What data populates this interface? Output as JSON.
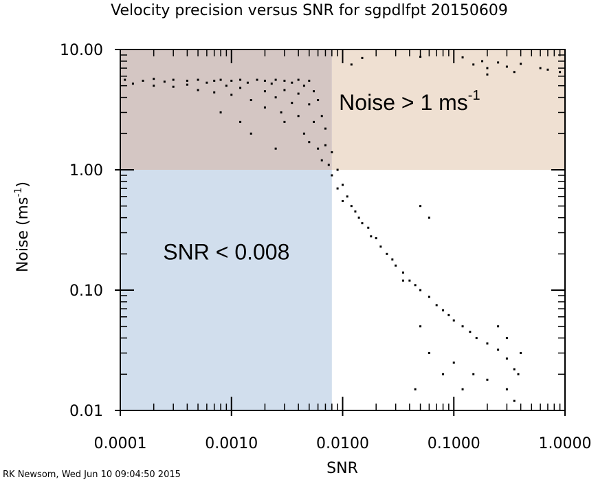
{
  "chart_data": {
    "type": "scatter",
    "title": "Velocity precision versus SNR for sgpdlfpt 20150609",
    "x_label": "SNR",
    "y_label": {
      "text": "Noise (ms",
      "sup": "-1",
      "tail": ")"
    },
    "footer": "RK Newsom, Wed Jun 10 09:04:50 2015",
    "xscale": "log",
    "yscale": "log",
    "xlim": [
      0.0001,
      1
    ],
    "ylim": [
      0.01,
      10
    ],
    "xticks": [
      {
        "value": 0.0001,
        "label": "0.0001"
      },
      {
        "value": 0.001,
        "label": "0.0010"
      },
      {
        "value": 0.01,
        "label": "0.0100"
      },
      {
        "value": 0.1,
        "label": "0.1000"
      },
      {
        "value": 1,
        "label": "1.0000"
      }
    ],
    "yticks": [
      {
        "value": 0.01,
        "label": "0.01"
      },
      {
        "value": 0.1,
        "label": "0.10"
      },
      {
        "value": 1,
        "label": "1.00"
      },
      {
        "value": 10,
        "label": "10.00"
      }
    ],
    "regions": [
      {
        "xlim": [
          0.008,
          1
        ],
        "ylim": [
          1,
          10
        ],
        "color": "#efe0d2"
      },
      {
        "xlim": [
          0.0001,
          0.008
        ],
        "ylim": [
          1,
          10
        ],
        "color": "#d4c6c3"
      },
      {
        "xlim": [
          0.0001,
          0.008
        ],
        "ylim": [
          0.01,
          1
        ],
        "color": "#d1deed"
      }
    ],
    "annotations": [
      {
        "text": "Noise > 1 ms",
        "sup": "-1",
        "x": 0.04,
        "y": 3.5
      },
      {
        "text": "SNR < 0.008",
        "x": 0.0009,
        "y": 0.2
      }
    ],
    "series": [
      {
        "color": "#000000",
        "x": [
          0.00011,
          0.00013,
          0.00016,
          0.0002,
          0.0002,
          0.00025,
          0.0003,
          0.0003,
          0.0004,
          0.0004,
          0.0005,
          0.0005,
          0.0006,
          0.0007,
          0.0007,
          0.0008,
          0.0009,
          0.001,
          0.001,
          0.0012,
          0.0012,
          0.0014,
          0.0015,
          0.0017,
          0.002,
          0.002,
          0.002,
          0.0023,
          0.0025,
          0.0025,
          0.0028,
          0.003,
          0.003,
          0.003,
          0.0035,
          0.0035,
          0.004,
          0.004,
          0.004,
          0.0045,
          0.0045,
          0.005,
          0.005,
          0.005,
          0.0055,
          0.0055,
          0.006,
          0.006,
          0.0065,
          0.0065,
          0.007,
          0.007,
          0.0075,
          0.008,
          0.008,
          0.009,
          0.009,
          0.01,
          0.01,
          0.011,
          0.012,
          0.013,
          0.014,
          0.015,
          0.017,
          0.018,
          0.02,
          0.022,
          0.025,
          0.028,
          0.03,
          0.035,
          0.04,
          0.045,
          0.05,
          0.06,
          0.07,
          0.08,
          0.09,
          0.1,
          0.12,
          0.14,
          0.16,
          0.2,
          0.25,
          0.3,
          0.35,
          0.38,
          0.0012,
          0.0015,
          0.0008,
          0.0025,
          0.05,
          0.06,
          0.08,
          0.1,
          0.12,
          0.15,
          0.2,
          0.3,
          0.25,
          0.3,
          0.4,
          0.05,
          0.06,
          0.035,
          0.045,
          0.35,
          0.012,
          0.015,
          0.05,
          0.12,
          0.15,
          0.18,
          0.2,
          0.25,
          0.3,
          0.35,
          0.4,
          0.6,
          0.7,
          0.9,
          0.2
        ],
        "y": [
          5.6,
          5.2,
          5.5,
          5.7,
          5.0,
          5.4,
          5.6,
          4.9,
          5.5,
          5.1,
          5.6,
          4.6,
          5.3,
          5.5,
          4.4,
          5.6,
          5.0,
          5.5,
          4.2,
          5.6,
          4.8,
          5.3,
          3.8,
          5.6,
          5.5,
          4.5,
          3.3,
          5.2,
          5.6,
          4.0,
          3.0,
          5.5,
          4.6,
          2.5,
          5.3,
          3.6,
          5.6,
          4.3,
          2.8,
          5.0,
          2.0,
          5.5,
          3.5,
          1.7,
          4.5,
          2.5,
          3.8,
          1.5,
          2.8,
          1.2,
          2.2,
          1.6,
          1.1,
          1.4,
          0.9,
          1.0,
          0.7,
          0.75,
          0.55,
          0.6,
          0.5,
          0.45,
          0.4,
          0.36,
          0.33,
          0.28,
          0.27,
          0.23,
          0.2,
          0.18,
          0.16,
          0.14,
          0.12,
          0.11,
          0.1,
          0.088,
          0.075,
          0.068,
          0.062,
          0.056,
          0.05,
          0.045,
          0.04,
          0.036,
          0.032,
          0.027,
          0.022,
          0.02,
          2.5,
          2.0,
          3.0,
          1.5,
          0.05,
          0.03,
          0.02,
          0.025,
          0.015,
          0.02,
          0.018,
          0.015,
          0.05,
          0.04,
          0.03,
          0.5,
          0.4,
          0.12,
          0.015,
          0.012,
          7.5,
          8.5,
          8.7,
          8.6,
          7.5,
          8.0,
          7.0,
          7.8,
          7.2,
          6.5,
          7.6,
          7.0,
          6.8,
          6.5,
          6.2
        ]
      }
    ]
  }
}
